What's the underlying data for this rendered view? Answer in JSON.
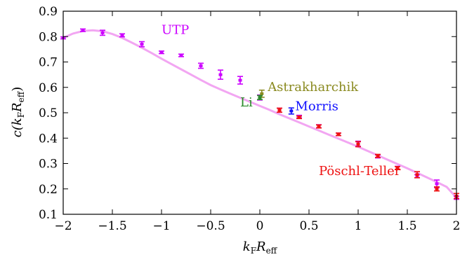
{
  "chart_data": {
    "type": "scatter",
    "title": "",
    "xlabel": "k_F R_eff",
    "ylabel": "c(k_F R_eff)",
    "xlim": [
      -2,
      2
    ],
    "ylim": [
      0.1,
      0.9
    ],
    "xticks": [
      "−2",
      "−1.5",
      "−1",
      "−0.5",
      "0",
      "0.5",
      "1",
      "1.5",
      "2"
    ],
    "yticks": [
      "0.1",
      "0.2",
      "0.3",
      "0.4",
      "0.5",
      "0.6",
      "0.7",
      "0.8",
      "0.9"
    ],
    "grid": false,
    "curve": {
      "name": "UTP fit",
      "color": "#f2a6f2",
      "x": [
        -2.0,
        -1.9,
        -1.8,
        -1.7,
        -1.6,
        -1.5,
        -1.4,
        -1.3,
        -1.2,
        -1.1,
        -1.0,
        -0.9,
        -0.8,
        -0.7,
        -0.6,
        -0.5,
        -0.4,
        -0.3,
        -0.2,
        -0.1,
        0.0,
        0.1,
        0.2,
        0.3,
        0.4,
        0.5,
        0.6,
        0.7,
        0.8,
        0.9,
        1.0,
        1.1,
        1.2,
        1.3,
        1.4,
        1.5,
        1.6,
        1.7,
        1.8,
        1.9,
        2.0
      ],
      "y": [
        0.795,
        0.812,
        0.822,
        0.825,
        0.821,
        0.81,
        0.795,
        0.776,
        0.756,
        0.735,
        0.713,
        0.692,
        0.671,
        0.65,
        0.629,
        0.609,
        0.592,
        0.575,
        0.559,
        0.543,
        0.527,
        0.511,
        0.494,
        0.478,
        0.462,
        0.446,
        0.43,
        0.414,
        0.398,
        0.382,
        0.366,
        0.349,
        0.332,
        0.315,
        0.298,
        0.281,
        0.263,
        0.245,
        0.227,
        0.208,
        0.165
      ]
    },
    "series": [
      {
        "name": "UTP",
        "color": "#cc00ff",
        "x": [
          -2.0,
          -1.8,
          -1.6,
          -1.4,
          -1.2,
          -1.0,
          -0.8,
          -0.6,
          -0.4,
          -0.2,
          0.0,
          0.2,
          0.4,
          0.6,
          0.8,
          1.0,
          1.2,
          1.4,
          1.6,
          1.8,
          2.0
        ],
        "y": [
          0.795,
          0.825,
          0.815,
          0.805,
          0.77,
          0.738,
          0.726,
          0.685,
          0.65,
          0.628,
          0.56,
          0.51,
          0.485,
          0.447,
          0.415,
          0.378,
          0.328,
          0.283,
          0.25,
          0.22,
          0.165
        ],
        "err": [
          0.004,
          0.005,
          0.01,
          0.006,
          0.01,
          0.005,
          0.005,
          0.01,
          0.018,
          0.015,
          0.01,
          0.008,
          0.005,
          0.006,
          0.005,
          0.01,
          0.006,
          0.006,
          0.006,
          0.015,
          0.006
        ]
      },
      {
        "name": "Pöschl-Teller",
        "color": "#ee1111",
        "x": [
          0.2,
          0.4,
          0.6,
          0.8,
          1.0,
          1.2,
          1.4,
          1.6,
          1.8,
          2.0
        ],
        "y": [
          0.51,
          0.482,
          0.446,
          0.415,
          0.376,
          0.33,
          0.282,
          0.256,
          0.2,
          0.172
        ],
        "err": [
          0.008,
          0.005,
          0.006,
          0.005,
          0.01,
          0.006,
          0.006,
          0.012,
          0.008,
          0.01
        ]
      },
      {
        "name": "Astrakharchik",
        "color": "#8a8a20",
        "x": [
          0.02
        ],
        "y": [
          0.575
        ],
        "err": [
          0.014
        ]
      },
      {
        "name": "Li",
        "color": "#2a8a2a",
        "x": [
          0.0
        ],
        "y": [
          0.56
        ],
        "err": [
          0.008
        ]
      },
      {
        "name": "Morris",
        "color": "#1111ff",
        "x": [
          0.32
        ],
        "y": [
          0.507
        ],
        "err": [
          0.012
        ]
      }
    ],
    "annotations": [
      {
        "id": "utp",
        "text": "UTP",
        "color": "#cc00ff",
        "x": -1.0,
        "y": 0.81
      },
      {
        "id": "astrakharchik",
        "text": "Astrakharchik",
        "color": "#8a8a20",
        "x": 0.08,
        "y": 0.585
      },
      {
        "id": "li",
        "text": "Li",
        "color": "#2a8a2a",
        "x": -0.2,
        "y": 0.525
      },
      {
        "id": "morris",
        "text": "Morris",
        "color": "#1111ff",
        "x": 0.36,
        "y": 0.51
      },
      {
        "id": "poschl-teller",
        "text": "Pöschl-Teller",
        "color": "#ee1111",
        "x": 0.6,
        "y": 0.255
      }
    ]
  }
}
